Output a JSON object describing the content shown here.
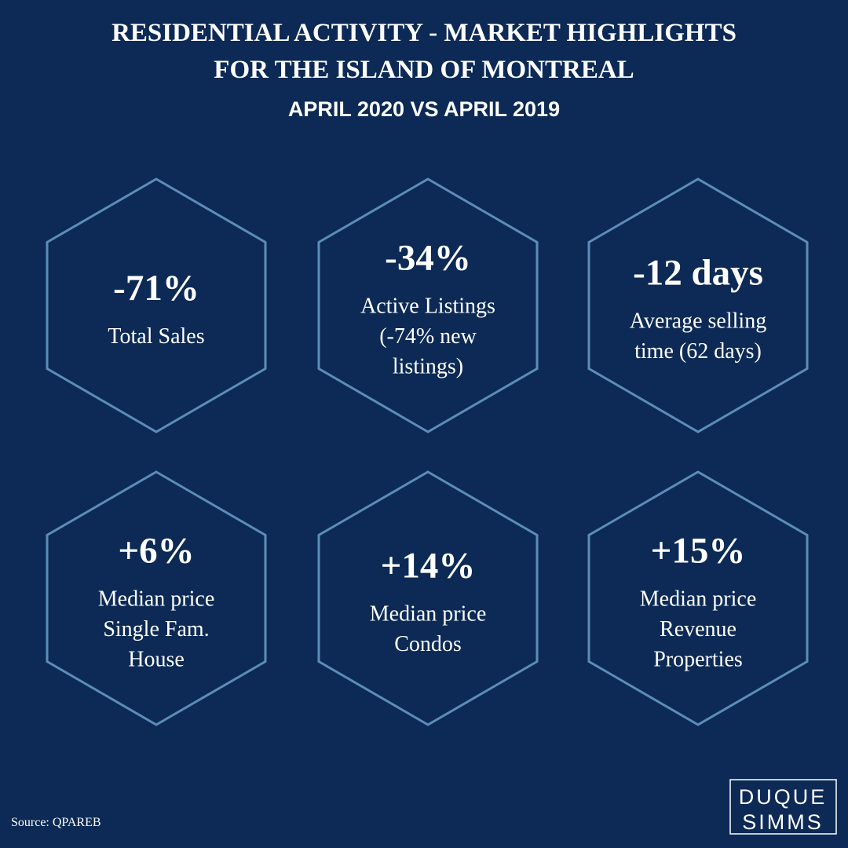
{
  "header": {
    "title_lines": [
      "RESIDENTIAL ACTIVITY  - MARKET HIGHLIGHTS",
      "FOR THE ISLAND OF MONTREAL"
    ],
    "subtitle": "APRIL 2020 VS APRIL 2019"
  },
  "tiles": [
    {
      "stat": "-71%",
      "label_lines": [
        "Total Sales"
      ]
    },
    {
      "stat": "-34%",
      "label_lines": [
        "Active Listings",
        "(-74% new",
        "listings)"
      ]
    },
    {
      "stat": "-12 days",
      "label_lines": [
        "Average selling",
        "time (62 days)"
      ]
    },
    {
      "stat": "+6%",
      "label_lines": [
        "Median price",
        "Single Fam.",
        "House"
      ]
    },
    {
      "stat": "+14%",
      "label_lines": [
        "Median price",
        "Condos"
      ]
    },
    {
      "stat": "+15%",
      "label_lines": [
        "Median price",
        "Revenue",
        "Properties"
      ]
    }
  ],
  "footer": {
    "source": "Source: QPAREB",
    "logo_lines": [
      "DUQUE",
      "SIMMS"
    ]
  }
}
